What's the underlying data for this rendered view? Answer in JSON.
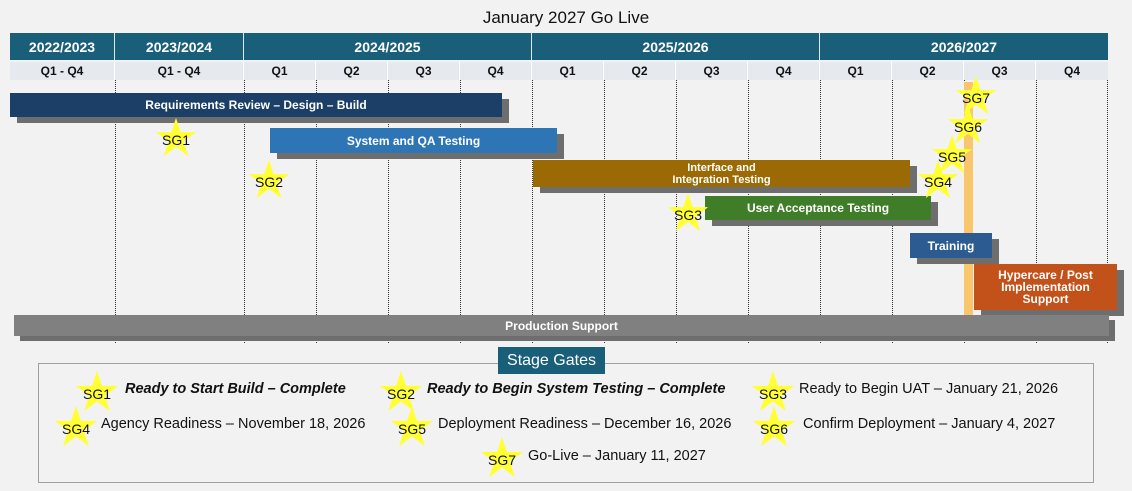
{
  "title": "January 2027 Go Live",
  "chart_data": {
    "type": "gantt",
    "title": "January 2027 Go Live",
    "fiscal_years": [
      "2022/2023",
      "2023/2024",
      "2024/2025",
      "2025/2026",
      "2026/2027"
    ],
    "quarters": [
      "Q1 - Q4",
      "Q1 - Q4",
      "Q1",
      "Q2",
      "Q3",
      "Q4",
      "Q1",
      "Q2",
      "Q3",
      "Q4",
      "Q1",
      "Q2",
      "Q3",
      "Q4"
    ],
    "tasks": [
      {
        "label": "Requirements Review – Design – Build",
        "color": "#1b3f66"
      },
      {
        "label": "System and QA Testing",
        "color": "#2e75b6"
      },
      {
        "label": "Interface and\nIntegration Testing",
        "color": "#9b6a04"
      },
      {
        "label": "User Acceptance Testing",
        "color": "#3f7d29"
      },
      {
        "label": "Training",
        "color": "#2c5b91"
      },
      {
        "label": "Hypercare / Post\nImplementation\nSupport",
        "color": "#c2511a"
      },
      {
        "label": "Production Support",
        "color": "#808080"
      }
    ],
    "stage_gates": [
      "SG1",
      "SG2",
      "SG3",
      "SG4",
      "SG5",
      "SG6",
      "SG7"
    ],
    "go_live_color": "#f9c66b",
    "star_color": "#ffff33"
  },
  "legend": {
    "title": "Stage Gates",
    "items": [
      {
        "gate": "SG1",
        "text": "Ready to Start Build – Complete"
      },
      {
        "gate": "SG2",
        "text": "Ready to Begin System Testing – Complete"
      },
      {
        "gate": "SG3",
        "text": "Ready to Begin UAT – January 21, 2026"
      },
      {
        "gate": "SG4",
        "text": "Agency Readiness – November 18, 2026"
      },
      {
        "gate": "SG5",
        "text": "Deployment Readiness – December 16, 2026"
      },
      {
        "gate": "SG6",
        "text": "Confirm Deployment – January 4, 2027"
      },
      {
        "gate": "SG7",
        "text": "Go-Live – January 11, 2027"
      }
    ]
  }
}
